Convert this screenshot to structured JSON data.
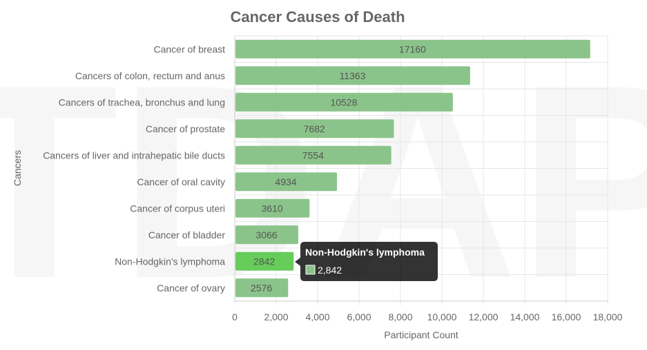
{
  "chart_data": {
    "type": "bar",
    "orientation": "horizontal",
    "title": "Cancer Causes of Death",
    "xlabel": "Participant Count",
    "ylabel": "Cancers",
    "categories": [
      "Cancer of breast",
      "Cancers of colon, rectum and anus",
      "Cancers of trachea, bronchus and lung",
      "Cancer of prostate",
      "Cancers of liver and intrahepatic bile ducts",
      "Cancer of oral cavity",
      "Cancer of corpus uteri",
      "Cancer of bladder",
      "Non-Hodgkin's lymphoma",
      "Cancer of ovary"
    ],
    "values": [
      17160,
      11363,
      10528,
      7682,
      7554,
      4934,
      3610,
      3066,
      2842,
      2576
    ],
    "xlim": [
      0,
      18000
    ],
    "xticks": [
      0,
      2000,
      4000,
      6000,
      8000,
      10000,
      12000,
      14000,
      16000,
      18000
    ],
    "xtick_labels": [
      "0",
      "2,000",
      "4,000",
      "6,000",
      "8,000",
      "10,000",
      "12,000",
      "14,000",
      "16,000",
      "18,000"
    ],
    "grid": true,
    "bar_color": "#8bc48a",
    "highlight_color": "#66cc5a",
    "watermark": "TDAP",
    "tooltip": {
      "category_index": 8,
      "title": "Non-Hodgkin's lymphoma",
      "value_label": "2,842"
    }
  }
}
